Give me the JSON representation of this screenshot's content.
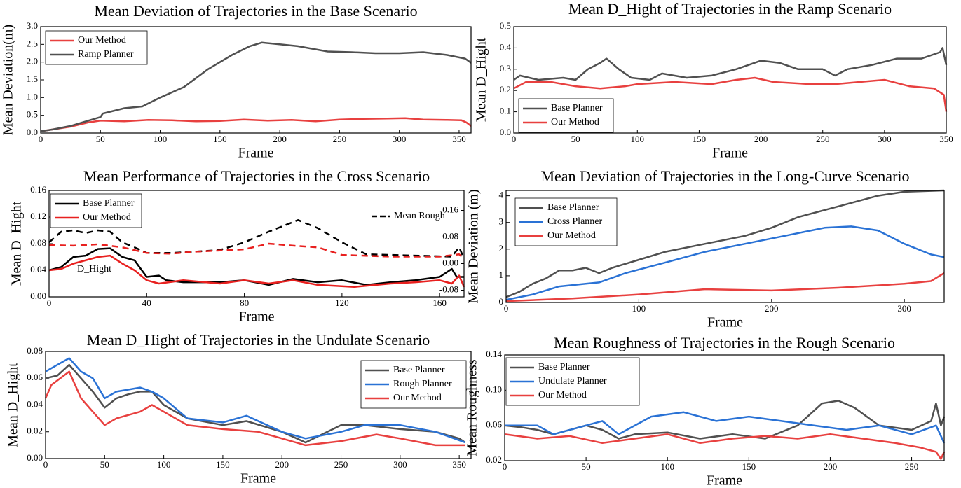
{
  "chart_data": [
    {
      "type": "line",
      "title": "Mean Deviation of Trajectories in the Base Scenario",
      "xlabel": "Frame",
      "ylabel": "Mean Deviation(m)",
      "xlim": [
        0,
        360
      ],
      "xticks": [
        0,
        50,
        100,
        150,
        200,
        250,
        300,
        350
      ],
      "ylim": [
        0,
        3
      ],
      "yticks": [
        {
          "value": 0,
          "label": "0.0"
        },
        0.5,
        {
          "value": 1,
          "label": "1.0"
        },
        1.5,
        {
          "value": 2,
          "label": "2.0"
        },
        2.5,
        {
          "value": 3,
          "label": "3.0"
        }
      ],
      "legend": "upper left",
      "series": [
        {
          "name": "Our Method",
          "color": "#e8403f",
          "x": [
            0,
            10,
            25,
            40,
            50,
            70,
            90,
            110,
            130,
            150,
            170,
            190,
            210,
            230,
            250,
            270,
            290,
            305,
            320,
            340,
            352,
            356,
            360
          ],
          "values": [
            0.05,
            0.1,
            0.18,
            0.3,
            0.35,
            0.33,
            0.37,
            0.36,
            0.33,
            0.34,
            0.38,
            0.35,
            0.37,
            0.33,
            0.38,
            0.4,
            0.41,
            0.42,
            0.38,
            0.37,
            0.36,
            0.3,
            0.2
          ]
        },
        {
          "name": "Ramp Planner",
          "color": "#505050",
          "x": [
            0,
            10,
            25,
            45,
            50,
            52,
            70,
            85,
            100,
            120,
            140,
            160,
            175,
            185,
            200,
            215,
            240,
            260,
            280,
            300,
            320,
            340,
            355,
            360
          ],
          "values": [
            0.05,
            0.1,
            0.2,
            0.4,
            0.45,
            0.55,
            0.7,
            0.75,
            1.0,
            1.3,
            1.8,
            2.2,
            2.45,
            2.55,
            2.5,
            2.45,
            2.3,
            2.28,
            2.25,
            2.25,
            2.28,
            2.2,
            2.1,
            1.98
          ]
        }
      ]
    },
    {
      "type": "line",
      "title": "Mean D_Hight of Trajectories in the Ramp Scenario",
      "xlabel": "Frame",
      "ylabel": "Mean D_Hight",
      "xlim": [
        0,
        350
      ],
      "xticks": [
        0,
        50,
        100,
        150,
        200,
        250,
        300,
        350
      ],
      "ylim": [
        0,
        0.5
      ],
      "yticks": [
        {
          "value": 0,
          "label": "0.0"
        },
        0.1,
        0.2,
        0.3,
        0.4,
        0.5
      ],
      "legend": "lower left",
      "series": [
        {
          "name": "Base Planner",
          "color": "#505050",
          "x": [
            0,
            5,
            20,
            40,
            50,
            60,
            70,
            75,
            85,
            95,
            110,
            120,
            140,
            160,
            180,
            200,
            215,
            230,
            250,
            260,
            270,
            290,
            310,
            330,
            345,
            347,
            350
          ],
          "values": [
            0.25,
            0.27,
            0.25,
            0.26,
            0.25,
            0.3,
            0.33,
            0.35,
            0.3,
            0.26,
            0.25,
            0.28,
            0.26,
            0.27,
            0.3,
            0.34,
            0.33,
            0.3,
            0.3,
            0.27,
            0.3,
            0.32,
            0.35,
            0.35,
            0.38,
            0.4,
            0.32
          ]
        },
        {
          "name": "Our Method",
          "color": "#e8403f",
          "x": [
            0,
            10,
            30,
            50,
            70,
            90,
            100,
            130,
            160,
            180,
            195,
            210,
            240,
            260,
            280,
            300,
            320,
            340,
            348,
            350
          ],
          "values": [
            0.21,
            0.24,
            0.24,
            0.22,
            0.21,
            0.22,
            0.23,
            0.24,
            0.23,
            0.25,
            0.26,
            0.24,
            0.23,
            0.23,
            0.24,
            0.25,
            0.22,
            0.21,
            0.18,
            0.1
          ]
        }
      ]
    },
    {
      "type": "line",
      "title": "Mean Performance of Trajectories in the Cross Scenario",
      "xlabel": "Frame",
      "ylabel": "Mean D_Hight",
      "annotation": "D_Hight",
      "xlim": [
        0,
        170
      ],
      "xticks": [
        0,
        40,
        80,
        120,
        160
      ],
      "ylim": [
        0,
        0.16
      ],
      "yticks": [
        {
          "value": 0,
          "label": "0.00"
        },
        0.04,
        0.08,
        0.12,
        0.16
      ],
      "y2lim": [
        -0.1,
        0.22
      ],
      "y2ticks": [
        -0.08,
        {
          "value": 0,
          "label": "0.00"
        },
        0.08,
        0.16
      ],
      "legend": "upper left",
      "legend_y2": "upper right",
      "series": [
        {
          "name": "Base Planner",
          "color": "#000000",
          "x": [
            0,
            5,
            10,
            15,
            20,
            25,
            30,
            35,
            40,
            45,
            48,
            55,
            70,
            80,
            90,
            100,
            110,
            120,
            130,
            140,
            150,
            160,
            165,
            167,
            170
          ],
          "values": [
            0.04,
            0.045,
            0.06,
            0.062,
            0.072,
            0.073,
            0.06,
            0.055,
            0.03,
            0.032,
            0.025,
            0.022,
            0.022,
            0.025,
            0.018,
            0.027,
            0.022,
            0.025,
            0.018,
            0.022,
            0.025,
            0.03,
            0.042,
            0.03,
            0.03
          ]
        },
        {
          "name": "Our Method",
          "color": "#e8201f",
          "x": [
            0,
            5,
            10,
            20,
            25,
            30,
            35,
            40,
            45,
            55,
            70,
            80,
            90,
            100,
            110,
            125,
            140,
            150,
            160,
            165,
            168,
            170
          ],
          "values": [
            0.04,
            0.042,
            0.05,
            0.06,
            0.062,
            0.05,
            0.04,
            0.025,
            0.02,
            0.025,
            0.02,
            0.025,
            0.02,
            0.025,
            0.018,
            0.015,
            0.02,
            0.022,
            0.025,
            0.02,
            0.032,
            0.015
          ]
        },
        {
          "name": "Mean Rough",
          "color": "#000000",
          "dash": true,
          "axis": "y2",
          "x": [
            0,
            5,
            10,
            15,
            20,
            25,
            30,
            35,
            40,
            50,
            60,
            70,
            80,
            90,
            102,
            110,
            120,
            130,
            140,
            150,
            165,
            168,
            170
          ],
          "values": [
            0.064,
            0.096,
            0.1,
            0.092,
            0.1,
            0.096,
            0.064,
            0.049,
            0.032,
            0.032,
            0.036,
            0.041,
            0.064,
            0.096,
            0.131,
            0.107,
            0.064,
            0.028,
            0.026,
            0.024,
            0.021,
            0.049,
            0.015
          ]
        },
        {
          "color": "#e8201f",
          "dash": true,
          "axis": "y2",
          "x": [
            0,
            10,
            20,
            30,
            40,
            50,
            60,
            80,
            90,
            100,
            110,
            120,
            140,
            160,
            168,
            170
          ],
          "values": [
            0.056,
            0.054,
            0.058,
            0.049,
            0.032,
            0.03,
            0.036,
            0.043,
            0.06,
            0.054,
            0.049,
            0.026,
            0.021,
            0.021,
            0.028,
            0.015
          ]
        }
      ]
    },
    {
      "type": "line",
      "title": "Mean Deviation of Trajectories in the Long-Curve Scenario",
      "xlabel": "Frame",
      "ylabel": "Mean Deviation (m)",
      "xlim": [
        0,
        330
      ],
      "xticks": [
        0,
        100,
        200,
        300
      ],
      "ylim": [
        0,
        4.2
      ],
      "yticks": [
        0,
        1,
        2,
        3,
        4
      ],
      "legend": "upper left",
      "series": [
        {
          "name": "Base Planner",
          "color": "#505050",
          "x": [
            0,
            10,
            20,
            30,
            40,
            50,
            60,
            70,
            80,
            100,
            120,
            150,
            180,
            200,
            220,
            250,
            280,
            300,
            330
          ],
          "values": [
            0.2,
            0.4,
            0.7,
            0.9,
            1.2,
            1.2,
            1.3,
            1.1,
            1.3,
            1.6,
            1.9,
            2.2,
            2.5,
            2.8,
            3.2,
            3.6,
            4.0,
            4.15,
            4.2
          ]
        },
        {
          "name": "Cross Planner",
          "color": "#2a72d5",
          "x": [
            0,
            20,
            40,
            60,
            70,
            90,
            120,
            150,
            180,
            210,
            240,
            260,
            280,
            300,
            320,
            330
          ],
          "values": [
            0.1,
            0.3,
            0.6,
            0.7,
            0.75,
            1.1,
            1.5,
            1.9,
            2.2,
            2.5,
            2.8,
            2.85,
            2.7,
            2.2,
            1.8,
            1.7
          ]
        },
        {
          "name": "Our Method",
          "color": "#e8403f",
          "x": [
            0,
            50,
            100,
            150,
            200,
            250,
            300,
            320,
            325,
            330
          ],
          "values": [
            0.05,
            0.15,
            0.3,
            0.5,
            0.45,
            0.55,
            0.7,
            0.8,
            0.95,
            1.1
          ]
        }
      ]
    },
    {
      "type": "line",
      "title": "Mean D_Hight of Trajectories in the Undulate Scenario",
      "xlabel": "Frame",
      "ylabel": "Mean D_Hight",
      "xlim": [
        0,
        360
      ],
      "xticks": [
        0,
        50,
        100,
        150,
        200,
        250,
        300,
        350
      ],
      "ylim": [
        0,
        0.08
      ],
      "yticks": [
        {
          "value": 0,
          "label": "0.00"
        },
        0.02,
        0.04,
        0.06,
        0.08
      ],
      "legend": "upper right",
      "series": [
        {
          "name": "Base Planner",
          "color": "#505050",
          "x": [
            0,
            10,
            20,
            30,
            40,
            50,
            60,
            70,
            80,
            90,
            100,
            120,
            150,
            170,
            200,
            220,
            250,
            270,
            300,
            330,
            350,
            355
          ],
          "values": [
            0.06,
            0.062,
            0.07,
            0.06,
            0.05,
            0.038,
            0.045,
            0.048,
            0.05,
            0.05,
            0.04,
            0.03,
            0.025,
            0.028,
            0.02,
            0.012,
            0.025,
            0.025,
            0.022,
            0.02,
            0.015,
            0.012
          ]
        },
        {
          "name": "Rough Planner",
          "color": "#2a72d5",
          "x": [
            0,
            10,
            20,
            30,
            40,
            50,
            60,
            80,
            90,
            100,
            120,
            150,
            170,
            200,
            220,
            250,
            270,
            300,
            330,
            355
          ],
          "values": [
            0.065,
            0.07,
            0.075,
            0.065,
            0.06,
            0.045,
            0.05,
            0.053,
            0.05,
            0.045,
            0.03,
            0.027,
            0.032,
            0.02,
            0.015,
            0.02,
            0.025,
            0.025,
            0.02,
            0.012
          ]
        },
        {
          "name": "Our Method",
          "color": "#e8403f",
          "x": [
            0,
            5,
            20,
            30,
            40,
            50,
            60,
            80,
            90,
            100,
            120,
            150,
            180,
            200,
            220,
            250,
            280,
            300,
            330,
            355
          ],
          "values": [
            0.045,
            0.055,
            0.065,
            0.045,
            0.035,
            0.025,
            0.03,
            0.035,
            0.04,
            0.035,
            0.025,
            0.022,
            0.02,
            0.015,
            0.01,
            0.013,
            0.018,
            0.015,
            0.01,
            0.01
          ]
        }
      ]
    },
    {
      "type": "line",
      "title": "Mean Roughness of Trajectories in the Rough Scenario",
      "xlabel": "Frame",
      "ylabel": "Mean Roughness",
      "xlim": [
        0,
        270
      ],
      "xticks": [
        0,
        50,
        100,
        150,
        200,
        250
      ],
      "ylim": [
        0.02,
        0.14
      ],
      "yticks": [
        0.02,
        0.06,
        {
          "value": 0.1,
          "label": "0.10"
        },
        0.14
      ],
      "legend": "upper left",
      "series": [
        {
          "name": "Base Planner",
          "color": "#505050",
          "x": [
            0,
            10,
            20,
            30,
            50,
            60,
            70,
            80,
            100,
            120,
            140,
            160,
            180,
            195,
            205,
            215,
            230,
            250,
            262,
            265,
            268,
            270
          ],
          "values": [
            0.06,
            0.058,
            0.055,
            0.05,
            0.06,
            0.055,
            0.045,
            0.05,
            0.052,
            0.045,
            0.05,
            0.045,
            0.06,
            0.085,
            0.088,
            0.08,
            0.06,
            0.055,
            0.065,
            0.085,
            0.06,
            0.07
          ]
        },
        {
          "name": "Undulate Planner",
          "color": "#2a72d5",
          "x": [
            0,
            20,
            30,
            50,
            60,
            70,
            90,
            110,
            130,
            150,
            170,
            190,
            210,
            230,
            250,
            265,
            270
          ],
          "values": [
            0.06,
            0.06,
            0.05,
            0.06,
            0.065,
            0.05,
            0.07,
            0.075,
            0.065,
            0.07,
            0.065,
            0.06,
            0.055,
            0.06,
            0.05,
            0.06,
            0.04
          ]
        },
        {
          "name": "Our Method",
          "color": "#e8403f",
          "x": [
            0,
            20,
            40,
            60,
            80,
            100,
            120,
            140,
            160,
            180,
            200,
            220,
            240,
            255,
            265,
            268,
            270
          ],
          "values": [
            0.05,
            0.045,
            0.048,
            0.04,
            0.045,
            0.05,
            0.04,
            0.045,
            0.048,
            0.045,
            0.05,
            0.045,
            0.04,
            0.035,
            0.03,
            0.022,
            0.03
          ]
        }
      ]
    }
  ]
}
